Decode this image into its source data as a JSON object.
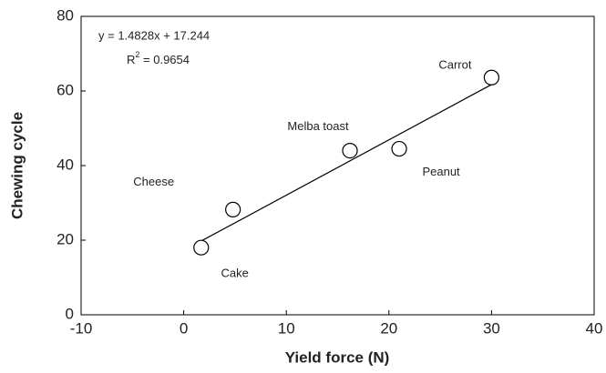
{
  "chart_data": {
    "type": "scatter",
    "x_label": "Yield force (N)",
    "y_label": "Chewing cycle",
    "categories": [
      "Cake",
      "Cheese",
      "Melba toast",
      "Peanut",
      "Carrot"
    ],
    "x": [
      1.7,
      4.8,
      16.2,
      21,
      30
    ],
    "values": [
      18,
      28.2,
      44,
      44.5,
      63.6
    ],
    "color": "#000000",
    "xlim": [
      -10,
      40
    ],
    "xticks": [
      -10,
      0,
      10,
      20,
      30,
      40
    ],
    "ylim": [
      0,
      80
    ],
    "yticks": [
      0,
      20,
      40,
      60,
      80
    ],
    "trendline": {
      "slope": 1.4828,
      "intercept": 17.244,
      "x_range": [
        1.7,
        30
      ]
    },
    "equation": "y = 1.4828x + 17.244",
    "r_squared": {
      "symbol": "R",
      "exponent": "2",
      "text": " = 0.9654"
    }
  }
}
